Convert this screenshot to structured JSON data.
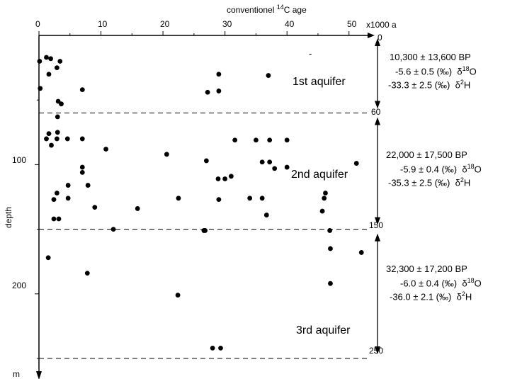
{
  "chart_data": {
    "type": "scatter",
    "title": "conventionel ¹⁴C age",
    "xlabel": "conventionel ¹⁴C age",
    "x_unit": "x1000 a",
    "ylabel": "depth",
    "y_unit": "m",
    "xlim": [
      0,
      53
    ],
    "ylim": [
      0,
      250
    ],
    "x_ticks": [
      0,
      10,
      20,
      30,
      40,
      50
    ],
    "y_ticks": [
      100,
      200
    ],
    "right_ticks": [
      0,
      60,
      150,
      250
    ],
    "boundaries": [
      60,
      150,
      250
    ],
    "points": [
      [
        0.1,
        20
      ],
      [
        1.2,
        17
      ],
      [
        1.9,
        18
      ],
      [
        1.6,
        30
      ],
      [
        2.9,
        25
      ],
      [
        3.4,
        20
      ],
      [
        0.2,
        41
      ],
      [
        3.0,
        63
      ],
      [
        3.1,
        51
      ],
      [
        3.6,
        53
      ],
      [
        7.0,
        42
      ],
      [
        27.2,
        44
      ],
      [
        29.0,
        43
      ],
      [
        29.0,
        30
      ],
      [
        37.0,
        31
      ],
      [
        1.2,
        80
      ],
      [
        1.6,
        76
      ],
      [
        2.0,
        85
      ],
      [
        2.9,
        80
      ],
      [
        3.0,
        75
      ],
      [
        4.6,
        80
      ],
      [
        7.0,
        80
      ],
      [
        10.8,
        88
      ],
      [
        20.6,
        92
      ],
      [
        31.6,
        81
      ],
      [
        35.0,
        81
      ],
      [
        37.2,
        81
      ],
      [
        40.0,
        81
      ],
      [
        36.0,
        98
      ],
      [
        37.2,
        98
      ],
      [
        38.0,
        103
      ],
      [
        40.0,
        102
      ],
      [
        51.2,
        99
      ],
      [
        27.0,
        97
      ],
      [
        7.0,
        102
      ],
      [
        7.0,
        106
      ],
      [
        4.7,
        116
      ],
      [
        7.9,
        116
      ],
      [
        2.9,
        122
      ],
      [
        2.4,
        127
      ],
      [
        4.7,
        126
      ],
      [
        9.0,
        133
      ],
      [
        15.9,
        134
      ],
      [
        22.5,
        126
      ],
      [
        29.0,
        127
      ],
      [
        28.9,
        111
      ],
      [
        30.0,
        111
      ],
      [
        31.0,
        109
      ],
      [
        34.0,
        126
      ],
      [
        36.0,
        126
      ],
      [
        36.7,
        139
      ],
      [
        46.0,
        126
      ],
      [
        46.2,
        122
      ],
      [
        45.7,
        136
      ],
      [
        2.4,
        142
      ],
      [
        3.2,
        142
      ],
      [
        12.0,
        150
      ],
      [
        26.6,
        151
      ],
      [
        26.8,
        151
      ],
      [
        46.9,
        151
      ],
      [
        47.0,
        165
      ],
      [
        52.0,
        168
      ],
      [
        1.5,
        172
      ],
      [
        7.8,
        184
      ],
      [
        22.4,
        201
      ],
      [
        47.0,
        192
      ],
      [
        28.0,
        242
      ],
      [
        29.3,
        242
      ]
    ]
  },
  "axis": {
    "top_title_prefix": "conventionel ",
    "top_title_sup": "14",
    "top_title_suffix": "C age",
    "x_unit": "x1000 a",
    "ylabel": "depth",
    "y_unit": "m",
    "x_ticks": [
      "0",
      "10",
      "20",
      "30",
      "40",
      "50"
    ],
    "y_ticks": [
      "100",
      "200"
    ],
    "right_ticks": [
      "0",
      "60",
      "150",
      "250"
    ]
  },
  "aquifers": [
    {
      "name": "1st aquifer",
      "age": "10,300 ± 13,600 BP",
      "o18_value": "-5.6 ± 0.5 (‰)",
      "h2_value": "-33.3 ± 2.5 (‰)"
    },
    {
      "name": "2nd aquifer",
      "age": "22,000 ± 17,500 BP",
      "o18_value": "-5.9 ± 0.4 (‰)",
      "h2_value": "-35.3 ± 2.5 (‰)"
    },
    {
      "name": "3rd aquifer",
      "age": "32,300 ± 17,200 BP",
      "o18_value": "-6.0 ± 0.4 (‰)",
      "h2_value": "-36.0 ± 2.1 (‰)"
    }
  ],
  "isotopes": {
    "o18_symbol": "δ",
    "o18_sup": "18",
    "o18_el": "O",
    "h2_symbol": "δ",
    "h2_sup": "2",
    "h2_el": "H"
  },
  "stray_mark": "-"
}
